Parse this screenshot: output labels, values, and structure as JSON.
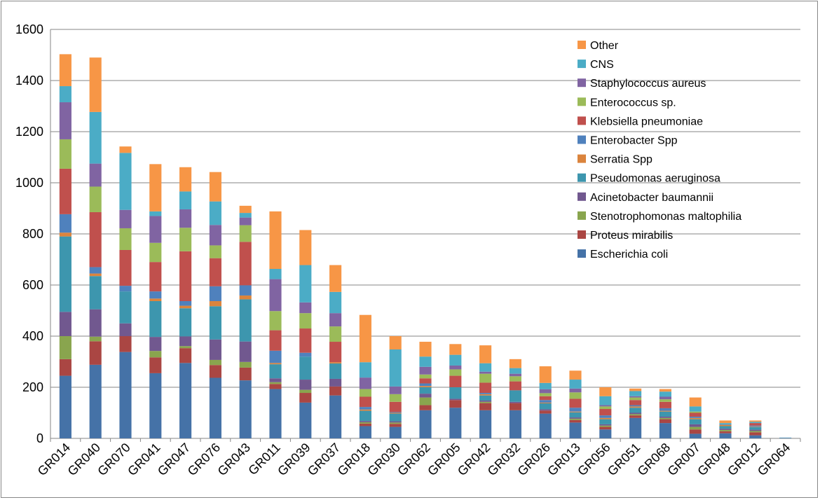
{
  "chart_data": {
    "type": "bar",
    "stacked": true,
    "title": "",
    "xlabel": "",
    "ylabel": "",
    "ylim": [
      0,
      1600
    ],
    "yticks": [
      0,
      200,
      400,
      600,
      800,
      1000,
      1200,
      1400,
      1600
    ],
    "grid": "horizontal",
    "legend_position": "right",
    "categories": [
      "GR014",
      "GR040",
      "GR070",
      "GR041",
      "GR047",
      "GR076",
      "GR043",
      "GR011",
      "GR039",
      "GR037",
      "GR018",
      "GR030",
      "GR062",
      "GR005",
      "GR042",
      "GR032",
      "GR026",
      "GR013",
      "GR056",
      "GR051",
      "GR068",
      "GR007",
      "GR048",
      "GR012",
      "GR064"
    ],
    "series": [
      {
        "name": "Escherichia coli",
        "color": "#4572A7",
        "values": [
          245,
          288,
          338,
          255,
          295,
          237,
          227,
          193,
          140,
          168,
          48,
          45,
          110,
          120,
          110,
          110,
          97,
          62,
          35,
          80,
          60,
          18,
          20,
          12,
          2
        ]
      },
      {
        "name": "Proteus mirabilis",
        "color": "#AA4643",
        "values": [
          65,
          92,
          62,
          62,
          58,
          50,
          50,
          20,
          38,
          35,
          10,
          12,
          20,
          30,
          28,
          28,
          12,
          10,
          10,
          10,
          15,
          17,
          8,
          12,
          0
        ]
      },
      {
        "name": "Stenotrophomonas maltophilia",
        "color": "#89A54E",
        "values": [
          90,
          18,
          0,
          25,
          8,
          20,
          22,
          7,
          12,
          0,
          5,
          5,
          30,
          0,
          5,
          0,
          0,
          5,
          5,
          5,
          5,
          10,
          5,
          5,
          0
        ]
      },
      {
        "name": "Acinetobacter baumannii",
        "color": "#71588F",
        "values": [
          95,
          107,
          50,
          55,
          38,
          80,
          80,
          15,
          40,
          30,
          5,
          5,
          15,
          5,
          5,
          5,
          5,
          5,
          5,
          5,
          5,
          10,
          5,
          5,
          0
        ]
      },
      {
        "name": "Pseudomonas aeruginosa",
        "color": "#3D96AE",
        "values": [
          295,
          130,
          125,
          140,
          110,
          130,
          165,
          55,
          90,
          60,
          40,
          30,
          25,
          45,
          20,
          45,
          23,
          20,
          20,
          20,
          20,
          20,
          10,
          10,
          1
        ]
      },
      {
        "name": "Serratia Spp",
        "color": "#DB843D",
        "values": [
          15,
          10,
          0,
          10,
          10,
          20,
          15,
          5,
          0,
          5,
          5,
          3,
          5,
          0,
          5,
          0,
          3,
          3,
          5,
          5,
          3,
          5,
          5,
          2,
          0
        ]
      },
      {
        "name": "Enterobacter Spp",
        "color": "#4F81BD",
        "values": [
          72,
          25,
          22,
          28,
          18,
          58,
          40,
          48,
          15,
          0,
          10,
          3,
          10,
          0,
          5,
          0,
          10,
          15,
          10,
          5,
          10,
          5,
          2,
          4,
          0
        ]
      },
      {
        "name": "Klebsiella pneumoniae",
        "color": "#C0504D",
        "values": [
          178,
          215,
          140,
          115,
          195,
          110,
          170,
          80,
          95,
          80,
          40,
          40,
          20,
          45,
          40,
          35,
          15,
          35,
          25,
          20,
          25,
          15,
          0,
          10,
          0
        ]
      },
      {
        "name": "Enterococcus sp.",
        "color": "#9BBB59",
        "values": [
          115,
          100,
          85,
          75,
          92,
          50,
          65,
          75,
          60,
          60,
          30,
          30,
          15,
          25,
          35,
          20,
          12,
          25,
          10,
          10,
          10,
          5,
          0,
          0,
          0
        ]
      },
      {
        "name": "Staphylococcus aureus",
        "color": "#8064A2",
        "values": [
          145,
          90,
          72,
          105,
          72,
          80,
          30,
          125,
          42,
          52,
          45,
          30,
          30,
          15,
          8,
          10,
          15,
          15,
          5,
          5,
          10,
          0,
          0,
          0,
          0
        ]
      },
      {
        "name": "CNS",
        "color": "#4BACC6",
        "values": [
          63,
          202,
          223,
          18,
          70,
          92,
          18,
          40,
          146,
          83,
          60,
          145,
          40,
          42,
          33,
          22,
          25,
          35,
          35,
          20,
          20,
          20,
          5,
          5,
          0
        ]
      },
      {
        "name": "Other",
        "color": "#F79646",
        "values": [
          125,
          213,
          25,
          185,
          95,
          115,
          28,
          225,
          137,
          105,
          185,
          52,
          58,
          42,
          70,
          35,
          65,
          35,
          35,
          10,
          10,
          35,
          10,
          5,
          0
        ]
      }
    ]
  }
}
